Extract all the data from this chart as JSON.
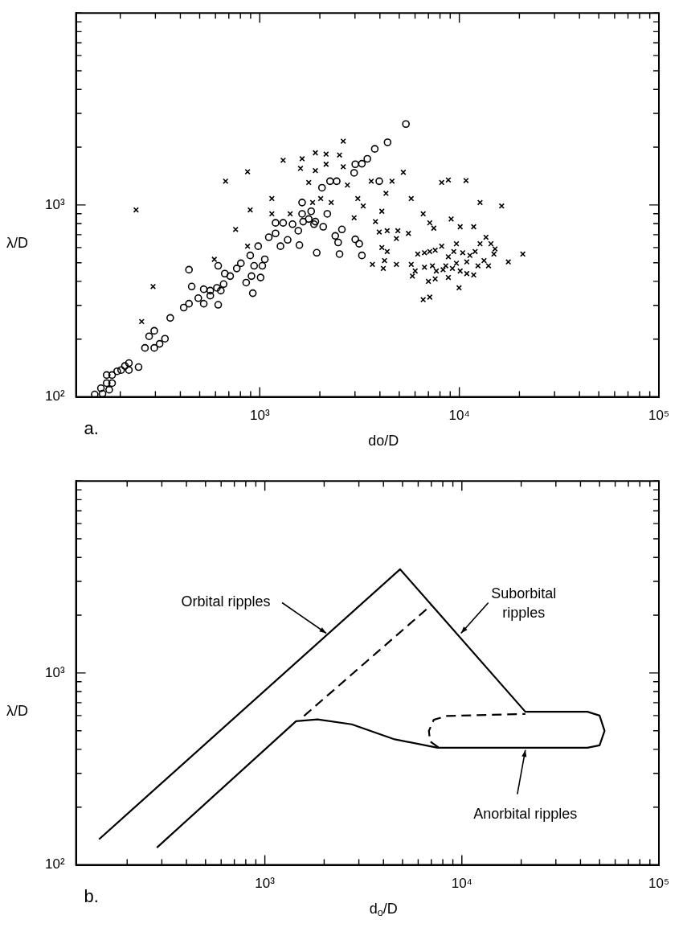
{
  "chart_data": [
    {
      "type": "scatter",
      "title": "a.",
      "xlabel": "do/D",
      "ylabel": "λ/D",
      "log": "xy",
      "xlim": [
        120,
        100000
      ],
      "ylim": [
        100,
        10000
      ],
      "xticks": [
        {
          "value": 200,
          "label": null
        },
        {
          "value": 300,
          "label": null
        },
        {
          "value": 400,
          "label": null
        },
        {
          "value": 500,
          "label": null
        },
        {
          "value": 600,
          "label": null
        },
        {
          "value": 700,
          "label": null
        },
        {
          "value": 800,
          "label": null
        },
        {
          "value": 900,
          "label": null
        },
        {
          "value": 1000,
          "label": "10³"
        },
        {
          "value": 2000,
          "label": null
        },
        {
          "value": 3000,
          "label": null
        },
        {
          "value": 4000,
          "label": null
        },
        {
          "value": 5000,
          "label": null
        },
        {
          "value": 6000,
          "label": null
        },
        {
          "value": 7000,
          "label": null
        },
        {
          "value": 8000,
          "label": null
        },
        {
          "value": 9000,
          "label": null
        },
        {
          "value": 10000,
          "label": "10⁴"
        },
        {
          "value": 20000,
          "label": null
        },
        {
          "value": 30000,
          "label": null
        },
        {
          "value": 40000,
          "label": null
        },
        {
          "value": 50000,
          "label": null
        },
        {
          "value": 60000,
          "label": null
        },
        {
          "value": 70000,
          "label": null
        },
        {
          "value": 80000,
          "label": null
        },
        {
          "value": 90000,
          "label": null
        },
        {
          "value": 100000,
          "label": "10⁵"
        }
      ],
      "yticks": [
        {
          "value": 100,
          "label": "10²"
        },
        {
          "value": 200,
          "label": null
        },
        {
          "value": 300,
          "label": null
        },
        {
          "value": 400,
          "label": null
        },
        {
          "value": 500,
          "label": null
        },
        {
          "value": 600,
          "label": null
        },
        {
          "value": 700,
          "label": null
        },
        {
          "value": 800,
          "label": null
        },
        {
          "value": 900,
          "label": null
        },
        {
          "value": 1000,
          "label": "10³"
        },
        {
          "value": 2000,
          "label": null
        },
        {
          "value": 3000,
          "label": null
        },
        {
          "value": 4000,
          "label": null
        },
        {
          "value": 5000,
          "label": null
        },
        {
          "value": 6000,
          "label": null
        },
        {
          "value": 7000,
          "label": null
        },
        {
          "value": 8000,
          "label": null
        },
        {
          "value": 9000,
          "label": null
        },
        {
          "value": 10000,
          "label": null
        }
      ],
      "series": [
        {
          "color": "#000000",
          "marker": "circle",
          "x": [
            149,
            163,
            160,
            176,
            171,
            182,
            171,
            182,
            193,
            202,
            211,
            221,
            221,
            247,
            266,
            279,
            296,
            296,
            315,
            335,
            356,
            416,
            442,
            442,
            456,
            492,
            524,
            524,
            565,
            565,
            619,
            610,
            638,
            659,
            668,
            711,
            619,
            767,
            804,
            855,
            909,
            923,
            896,
            937,
            1010,
            1030,
            1060,
            982,
            1110,
            1200,
            1270,
            1200,
            1310,
            1380,
            1460,
            1560,
            1580,
            1630,
            1650,
            1760,
            1810,
            1870,
            1900,
            2080,
            2180,
            1930,
            2390,
            2470,
            2510,
            2580,
            2050,
            2250,
            2430,
            1630,
            5400,
            4370,
            3770,
            3460,
            3250,
            3010,
            2970,
            3970,
            3010,
            3150,
            3250
          ],
          "values": [
            103,
            104,
            111,
            109,
            118,
            118,
            130,
            130,
            136,
            138,
            145,
            150,
            138,
            143,
            180,
            207,
            221,
            180,
            189,
            201,
            258,
            292,
            306,
            460,
            376,
            327,
            306,
            364,
            358,
            337,
            302,
            370,
            358,
            387,
            439,
            426,
            482,
            467,
            497,
            394,
            426,
            347,
            546,
            482,
            419,
            482,
            521,
            610,
            679,
            711,
            610,
            807,
            807,
            658,
            794,
            734,
            618,
            899,
            819,
            845,
            927,
            794,
            819,
            770,
            899,
            564,
            690,
            638,
            555,
            746,
            1230,
            1330,
            1330,
            1030,
            2640,
            2120,
            1960,
            1740,
            1640,
            1630,
            1470,
            1330,
            662,
            628,
            546
          ]
        },
        {
          "color": "#000000",
          "marker": "cross",
          "x": [
            240,
            292,
            256,
            674,
            869,
            757,
            896,
            869,
            592,
            1150,
            1150,
            1310,
            1420,
            1630,
            1600,
            1760,
            1900,
            1900,
            2150,
            2150,
            2280,
            2510,
            2620,
            2620,
            1840,
            2020,
            2750,
            3100,
            3300,
            2970,
            4090,
            3800,
            3970,
            4350,
            4920,
            5560,
            4840,
            4090,
            4350,
            3670,
            4160,
            4220,
            4840,
            5240,
            4600,
            3620,
            4290,
            5740,
            8160,
            8810,
            10800,
            12700,
            16300,
            6590,
            7110,
            7450,
            9100,
            10100,
            11800,
            13600,
            14400,
            15100,
            14900,
            13300,
            14000,
            12700,
            12000,
            11300,
            10400,
            9670,
            9380,
            8810,
            8160,
            7570,
            7110,
            6690,
            6190,
            5740,
            6010,
            5820,
            6690,
            7330,
            7670,
            8290,
            8810,
            9670,
            10100,
            10900,
            11800,
            12400,
            7570,
            7000,
            9970,
            6590,
            7110,
            17600,
            20800,
            8550,
            10900,
            9230
          ],
          "values": [
            942,
            376,
            247,
            1330,
            1490,
            746,
            942,
            610,
            521,
            1080,
            899,
            1710,
            899,
            1740,
            1550,
            1310,
            1870,
            1510,
            1840,
            1630,
            1030,
            1820,
            2150,
            1580,
            1030,
            1080,
            1270,
            1080,
            988,
            858,
            927,
            819,
            723,
            734,
            734,
            711,
            668,
            600,
            572,
            490,
            467,
            513,
            490,
            1480,
            1330,
            1330,
            1150,
            1080,
            1310,
            1350,
            1340,
            1030,
            988,
            899,
            807,
            757,
            845,
            770,
            770,
            679,
            628,
            590,
            555,
            513,
            482,
            628,
            572,
            546,
            564,
            628,
            572,
            537,
            610,
            581,
            572,
            564,
            555,
            490,
            453,
            426,
            474,
            482,
            453,
            460,
            419,
            497,
            453,
            439,
            432,
            482,
            412,
            400,
            370,
            321,
            331,
            505,
            555,
            482,
            505,
            467
          ]
        }
      ]
    },
    {
      "type": "line",
      "title": "b.",
      "xlabel": "d$_{o}$/D",
      "ylabel": "λ/D",
      "log": "xy",
      "xlim": [
        110,
        100000
      ],
      "ylim": [
        100,
        10000
      ],
      "xticks": [
        {
          "value": 200,
          "label": null
        },
        {
          "value": 300,
          "label": null
        },
        {
          "value": 400,
          "label": null
        },
        {
          "value": 500,
          "label": null
        },
        {
          "value": 600,
          "label": null
        },
        {
          "value": 700,
          "label": null
        },
        {
          "value": 800,
          "label": null
        },
        {
          "value": 900,
          "label": null
        },
        {
          "value": 1000,
          "label": "10³"
        },
        {
          "value": 2000,
          "label": null
        },
        {
          "value": 3000,
          "label": null
        },
        {
          "value": 4000,
          "label": null
        },
        {
          "value": 5000,
          "label": null
        },
        {
          "value": 6000,
          "label": null
        },
        {
          "value": 7000,
          "label": null
        },
        {
          "value": 8000,
          "label": null
        },
        {
          "value": 9000,
          "label": null
        },
        {
          "value": 10000,
          "label": "10⁴"
        },
        {
          "value": 20000,
          "label": null
        },
        {
          "value": 30000,
          "label": null
        },
        {
          "value": 40000,
          "label": null
        },
        {
          "value": 50000,
          "label": null
        },
        {
          "value": 60000,
          "label": null
        },
        {
          "value": 70000,
          "label": null
        },
        {
          "value": 80000,
          "label": null
        },
        {
          "value": 90000,
          "label": null
        },
        {
          "value": 100000,
          "label": "10⁵"
        }
      ],
      "yticks": [
        {
          "value": 100,
          "label": "10²"
        },
        {
          "value": 200,
          "label": null
        },
        {
          "value": 300,
          "label": null
        },
        {
          "value": 400,
          "label": null
        },
        {
          "value": 500,
          "label": null
        },
        {
          "value": 600,
          "label": null
        },
        {
          "value": 700,
          "label": null
        },
        {
          "value": 800,
          "label": null
        },
        {
          "value": 900,
          "label": null
        },
        {
          "value": 1000,
          "label": "10³"
        },
        {
          "value": 2000,
          "label": null
        },
        {
          "value": 3000,
          "label": null
        },
        {
          "value": 4000,
          "label": null
        },
        {
          "value": 5000,
          "label": null
        },
        {
          "value": 6000,
          "label": null
        },
        {
          "value": 7000,
          "label": null
        },
        {
          "value": 8000,
          "label": null
        },
        {
          "value": 9000,
          "label": null
        },
        {
          "value": 10000,
          "label": null
        }
      ],
      "series": [
        {
          "color": "#000000",
          "line_style": "solid",
          "x": [
            144,
            4860,
            21000,
            43400,
            50000,
            53000,
            50000,
            43400,
            7520,
            4560,
            2760,
            1850,
            1440,
            283
          ],
          "values": [
            136,
            3470,
            628,
            628,
            600,
            499,
            420,
            408,
            408,
            451,
            540,
            573,
            561,
            123
          ]
        },
        {
          "color": "#000000",
          "line_style": "dashed",
          "x": [
            1580,
            6970
          ],
          "values": [
            597,
            2250
          ]
        },
        {
          "color": "#000000",
          "line_style": "dashed",
          "x": [
            7600,
            6900,
            6800,
            7200,
            8320,
            21000
          ],
          "values": [
            410,
            440,
            499,
            570,
            597,
            612
          ]
        }
      ],
      "annotations": [
        {
          "text": "Orbital ripples",
          "x": 2050,
          "y": 1610
        },
        {
          "text": "Suborbital ripples",
          "x": 9900,
          "y": 1610
        },
        {
          "text": "Anorbital ripples",
          "x": 21000,
          "y": 397
        }
      ]
    }
  ]
}
